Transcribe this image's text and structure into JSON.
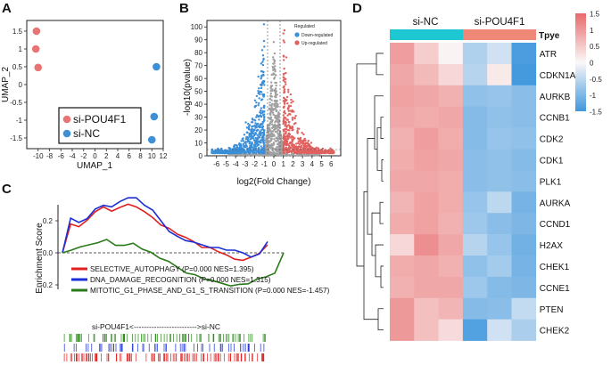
{
  "panels": {
    "A": {
      "letter": "A",
      "chart_data": {
        "type": "scatter",
        "xlabel": "UMAP_1",
        "ylabel": "UMAP_2",
        "xlim": [
          -12,
          12
        ],
        "ylim": [
          -1.8,
          1.8
        ],
        "xticks": [
          "-10",
          "-8",
          "-6",
          "-4",
          "-2",
          "0",
          "2",
          "4",
          "6",
          "8",
          "10",
          "12"
        ],
        "yticks": [
          "-1.5",
          "-1",
          "-0.5",
          "0",
          "0.5",
          "1",
          "1.5"
        ],
        "legend": [
          "si-POU4F1",
          "si-NC"
        ],
        "series": [
          {
            "name": "si-POU4F1",
            "color": "#e87474",
            "points": [
              [
                -10.3,
                1.5
              ],
              [
                -10.4,
                1.0
              ],
              [
                -10.0,
                0.48
              ]
            ]
          },
          {
            "name": "si-NC",
            "color": "#3d8fd6",
            "points": [
              [
                10.8,
                0.5
              ],
              [
                10.4,
                -0.9
              ],
              [
                10.0,
                -1.55
              ]
            ]
          }
        ]
      }
    },
    "B": {
      "letter": "B",
      "chart_data": {
        "type": "scatter",
        "xlabel": "log2(Fold Change)",
        "ylabel": "-log10(pvalue)",
        "xlim": [
          -7,
          7
        ],
        "ylim": [
          0,
          105
        ],
        "xticks": [
          "-6",
          "-5",
          "-4",
          "-3",
          "-2",
          "-1",
          "0",
          "1",
          "2",
          "3",
          "4",
          "5",
          "6"
        ],
        "yticks": [
          "0",
          "10",
          "20",
          "30",
          "40",
          "50",
          "60",
          "70",
          "80",
          "90",
          "100"
        ],
        "legend_title": "Regulated",
        "legend": [
          "Down-regulated",
          "Up-regulated"
        ],
        "colors": {
          "down": "#3b8fd9",
          "up": "#e0605f",
          "ns": "#a0a0a0"
        }
      }
    },
    "C": {
      "letter": "C",
      "chart_data": {
        "type": "line",
        "ylabel": "Enrichment Score",
        "ylim": [
          -0.25,
          0.35
        ],
        "yticks": [
          "0.2",
          "0.0",
          "-0.2"
        ],
        "series": [
          {
            "name": "SELECTIVE_AUTOPHAGY",
            "color": "#e02020",
            "pval": "0.000",
            "nes": "1.395",
            "values": [
              0,
              0.18,
              0.17,
              0.2,
              0.26,
              0.28,
              0.26,
              0.29,
              0.3,
              0.29,
              0.25,
              0.22,
              0.18,
              0.15,
              0.12,
              0.09,
              0.07,
              0.04,
              0.03,
              0.01,
              -0.02,
              -0.04,
              -0.04,
              -0.03,
              0.0,
              0.05
            ]
          },
          {
            "name": "DNA_DAMAGE_RECOGNITION",
            "color": "#1a2fd6",
            "pval": "0.000",
            "nes": "1.315",
            "values": [
              0,
              0.21,
              0.19,
              0.22,
              0.27,
              0.3,
              0.28,
              0.32,
              0.35,
              0.34,
              0.3,
              0.26,
              0.2,
              0.14,
              0.1,
              0.08,
              0.06,
              0.05,
              0.04,
              0.03,
              0.02,
              0.01,
              0.0,
              -0.02,
              -0.01,
              0.07
            ]
          },
          {
            "name": "MITOTIC_G1_PHASE_AND_G1_S_TRANSITION",
            "color": "#2a7a1a",
            "pval": "0.000",
            "nes": "-1.457",
            "values": [
              0,
              0.02,
              0.03,
              0.05,
              0.07,
              0.08,
              0.05,
              0.04,
              0.06,
              0.03,
              0.0,
              -0.03,
              -0.06,
              -0.09,
              -0.12,
              -0.14,
              -0.16,
              -0.18,
              -0.19,
              -0.2,
              -0.2,
              -0.19,
              -0.17,
              -0.15,
              -0.12,
              0.0
            ]
          }
        ],
        "ranking_label": "si-POU4F1<------------------------->si-NC"
      }
    },
    "D": {
      "letter": "D",
      "chart_data": {
        "type": "heatmap",
        "groups": [
          "si-NC",
          "si-POU4F1"
        ],
        "group_colors": [
          "#1ec8d2",
          "#f08878"
        ],
        "annotation_label": "Tpye",
        "rows": [
          "ATR",
          "CDKN1A",
          "AURKB",
          "CCNB1",
          "CDK2",
          "CDK1",
          "PLK1",
          "AURKA",
          "CCND1",
          "H2AX",
          "CHEK1",
          "CCNE1",
          "PTEN",
          "CHEK2"
        ],
        "values": [
          [
            0.95,
            0.45,
            0.05,
            -0.6,
            -0.35,
            -1.4
          ],
          [
            0.85,
            0.65,
            0.35,
            -0.55,
            0.15,
            -1.45
          ],
          [
            0.9,
            0.85,
            0.75,
            -0.85,
            -0.8,
            -0.9
          ],
          [
            0.85,
            0.8,
            0.85,
            -0.95,
            -0.85,
            -0.9
          ],
          [
            0.75,
            0.95,
            0.8,
            -0.95,
            -0.8,
            -0.85
          ],
          [
            0.8,
            0.9,
            0.85,
            -0.9,
            -0.85,
            -0.95
          ],
          [
            0.85,
            0.85,
            0.8,
            -0.9,
            -0.85,
            -0.9
          ],
          [
            0.7,
            0.9,
            0.8,
            -0.8,
            -0.5,
            -1.05
          ],
          [
            0.8,
            0.9,
            0.75,
            -0.75,
            -0.9,
            -1.0
          ],
          [
            0.35,
            1.1,
            0.85,
            -0.55,
            -0.8,
            -1.1
          ],
          [
            0.8,
            0.85,
            0.75,
            -0.85,
            -0.7,
            -1.05
          ],
          [
            0.75,
            0.85,
            0.85,
            -0.75,
            -0.95,
            -1.0
          ],
          [
            1.0,
            0.6,
            0.7,
            -0.95,
            -0.9,
            -0.45
          ],
          [
            1.0,
            0.6,
            0.3,
            -1.35,
            -0.35,
            -0.65
          ]
        ],
        "colorbar_ticks": [
          "1.5",
          "1",
          "0.5",
          "0",
          "-0.5",
          "-1",
          "-1.5"
        ],
        "vmin": -1.5,
        "vmax": 1.5
      }
    }
  }
}
